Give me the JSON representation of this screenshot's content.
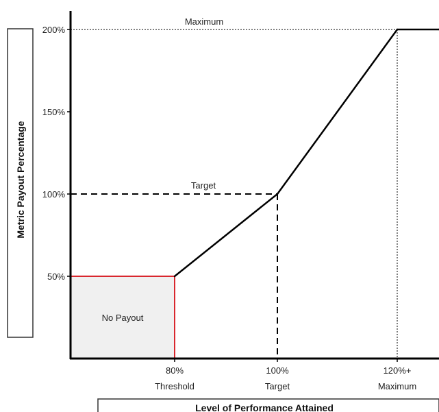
{
  "chart_data": {
    "type": "line",
    "xlabel": "Level of Performance Attained",
    "ylabel": "Metric Payout Percentage",
    "xlim": [
      70,
      125
    ],
    "ylim": [
      0,
      200
    ],
    "x_ticks": [
      {
        "value": 80,
        "label": "80%",
        "sublabel": "Threshold"
      },
      {
        "value": 100,
        "label": "100%",
        "sublabel": "Target"
      },
      {
        "value": 120,
        "label": "120%+",
        "sublabel": "Maximum"
      }
    ],
    "y_ticks": [
      {
        "value": 50,
        "label": "50%"
      },
      {
        "value": 100,
        "label": "100%"
      },
      {
        "value": 150,
        "label": "150%"
      },
      {
        "value": 200,
        "label": "200%"
      }
    ],
    "series": [
      {
        "x": [
          80,
          100,
          120,
          125
        ],
        "y": [
          50,
          100,
          200,
          200
        ]
      }
    ],
    "annotations": {
      "target": "Target",
      "maximum": "Maximum",
      "no_payout": "No Payout"
    },
    "colors": {
      "line": "#000000",
      "no_payout_border": "#d9272e",
      "no_payout_fill": "#f0f0f0"
    }
  }
}
